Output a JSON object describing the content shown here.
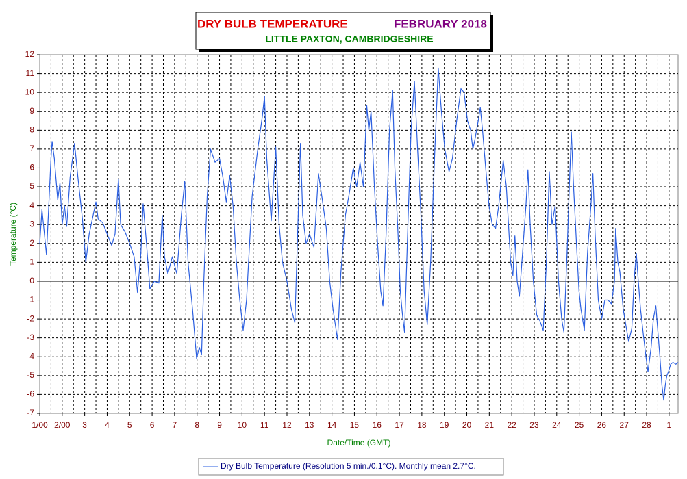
{
  "chart_data": {
    "type": "line",
    "title": "DRY BULB TEMPERATURE",
    "period": "FEBRUARY 2018",
    "subtitle": "LITTLE PAXTON, CAMBRIDGESHIRE",
    "x_label": "Date/Time (GMT)",
    "y_label": "Temperature (°C)",
    "xlim": [
      0,
      28.4
    ],
    "ylim": [
      -7,
      12
    ],
    "xticks": [
      {
        "value": 0,
        "label": "1/00"
      },
      {
        "value": 1,
        "label": "2/00"
      },
      {
        "value": 2,
        "label": "3"
      },
      {
        "value": 3,
        "label": "4"
      },
      {
        "value": 4,
        "label": "5"
      },
      {
        "value": 5,
        "label": "6"
      },
      {
        "value": 6,
        "label": "7"
      },
      {
        "value": 7,
        "label": "8"
      },
      {
        "value": 8,
        "label": "9"
      },
      {
        "value": 9,
        "label": "10"
      },
      {
        "value": 10,
        "label": "11"
      },
      {
        "value": 11,
        "label": "12"
      },
      {
        "value": 12,
        "label": "13"
      },
      {
        "value": 13,
        "label": "14"
      },
      {
        "value": 14,
        "label": "15"
      },
      {
        "value": 15,
        "label": "16"
      },
      {
        "value": 16,
        "label": "17"
      },
      {
        "value": 17,
        "label": "18"
      },
      {
        "value": 18,
        "label": "19"
      },
      {
        "value": 19,
        "label": "20"
      },
      {
        "value": 20,
        "label": "21"
      },
      {
        "value": 21,
        "label": "22"
      },
      {
        "value": 22,
        "label": "23"
      },
      {
        "value": 23,
        "label": "24"
      },
      {
        "value": 24,
        "label": "25"
      },
      {
        "value": 25,
        "label": "26"
      },
      {
        "value": 26,
        "label": "27"
      },
      {
        "value": 27,
        "label": "28"
      },
      {
        "value": 28,
        "label": "1"
      }
    ],
    "yticks": [
      -7,
      -6,
      -5,
      -4,
      -3,
      -2,
      -1,
      0,
      1,
      2,
      3,
      4,
      5,
      6,
      7,
      8,
      9,
      10,
      11,
      12
    ],
    "grid": true,
    "series": [
      {
        "name": "Dry Bulb Temperature (Resolution 5 min./0.1°C). Monthly mean 2.7°C.",
        "color": "#2b5fe0",
        "x": [
          0,
          0.1,
          0.3,
          0.5,
          0.55,
          0.65,
          0.8,
          0.9,
          1.0,
          1.1,
          1.2,
          1.35,
          1.55,
          1.7,
          1.9,
          2.05,
          2.2,
          2.5,
          2.6,
          2.8,
          3.0,
          3.2,
          3.35,
          3.5,
          3.6,
          3.8,
          4.0,
          4.2,
          4.35,
          4.5,
          4.6,
          4.75,
          4.9,
          5.1,
          5.3,
          5.45,
          5.55,
          5.7,
          5.9,
          6.1,
          6.3,
          6.45,
          6.6,
          6.8,
          6.98,
          7.1,
          7.2,
          7.3,
          7.45,
          7.6,
          7.8,
          8.0,
          8.15,
          8.3,
          8.45,
          8.6,
          8.75,
          8.9,
          9.05,
          9.2,
          9.45,
          9.7,
          9.9,
          10.0,
          10.1,
          10.3,
          10.5,
          10.65,
          10.8,
          11.0,
          11.2,
          11.35,
          11.5,
          11.6,
          11.7,
          11.85,
          12.0,
          12.2,
          12.4,
          12.55,
          12.75,
          12.9,
          13.05,
          13.25,
          13.4,
          13.6,
          13.75,
          13.95,
          14.1,
          14.25,
          14.4,
          14.55,
          14.64,
          14.74,
          14.89,
          15.03,
          15.17,
          15.27,
          15.41,
          15.56,
          15.7,
          15.8,
          15.94,
          16.04,
          16.14,
          16.23,
          16.38,
          16.52,
          16.67,
          16.81,
          16.96,
          17.1,
          17.24,
          17.39,
          17.58,
          17.73,
          17.87,
          18.02,
          18.21,
          18.36,
          18.55,
          18.74,
          18.88,
          19.03,
          19.17,
          19.27,
          19.36,
          19.51,
          19.6,
          19.7,
          19.84,
          19.99,
          20.13,
          20.28,
          20.42,
          20.62,
          20.76,
          20.95,
          21.05,
          21.14,
          21.24,
          21.34,
          21.48,
          21.63,
          21.72,
          21.82,
          21.96,
          22.11,
          22.25,
          22.4,
          22.54,
          22.67,
          22.79,
          22.93,
          23.08,
          23.22,
          23.32,
          23.46,
          23.56,
          23.65,
          23.75,
          23.9,
          23.99,
          24.08,
          24.23,
          24.37,
          24.52,
          24.61,
          24.71,
          24.85,
          25.0,
          25.14,
          25.29,
          25.43,
          25.57,
          25.62,
          25.72,
          25.81,
          25.96,
          26.1,
          26.2,
          26.34,
          26.44,
          26.54,
          26.63,
          26.73,
          26.87,
          26.97,
          27.06,
          27.2,
          27.3,
          27.41,
          27.49,
          27.59,
          27.68,
          27.76,
          27.83,
          27.9,
          27.97,
          28.07,
          28.17,
          28.3,
          28.4
        ],
        "values": [
          2.0,
          3.8,
          1.4,
          6.5,
          7.4,
          6.5,
          4.3,
          5.2,
          3.0,
          4.0,
          2.9,
          5.5,
          7.3,
          5.5,
          3.3,
          1.0,
          2.5,
          4.2,
          3.3,
          3.1,
          2.5,
          1.9,
          2.5,
          5.4,
          3.0,
          2.6,
          2.0,
          1.3,
          -0.6,
          1.5,
          4.1,
          2.0,
          -0.4,
          0.0,
          -0.1,
          3.5,
          1.3,
          0.4,
          1.3,
          0.4,
          3.5,
          5.3,
          1.0,
          -1.5,
          -4.1,
          -3.5,
          -3.9,
          0.0,
          4.5,
          7.0,
          6.3,
          6.5,
          5.5,
          4.2,
          5.6,
          4.0,
          1.0,
          -1.0,
          -2.6,
          -1.0,
          4.5,
          7.0,
          8.7,
          9.8,
          6.5,
          3.2,
          7.1,
          3.0,
          1.0,
          0.0,
          -1.5,
          -2.2,
          3.5,
          7.3,
          3.5,
          2.0,
          2.5,
          1.8,
          5.7,
          4.5,
          2.8,
          0.0,
          -1.5,
          -3.1,
          0.5,
          3.5,
          4.5,
          6.0,
          5.0,
          6.3,
          5.0,
          9.3,
          8.0,
          9.0,
          5.0,
          2.0,
          -0.5,
          -1.3,
          2.5,
          8.0,
          10.1,
          6.0,
          2.5,
          -0.5,
          -1.8,
          -2.7,
          3.0,
          8.0,
          10.6,
          7.0,
          3.5,
          -0.5,
          -2.3,
          1.0,
          7.0,
          11.3,
          9.0,
          7.0,
          5.8,
          6.5,
          8.5,
          10.2,
          10.0,
          8.5,
          8.0,
          7.0,
          7.5,
          8.5,
          9.2,
          8.0,
          6.0,
          4.0,
          3.0,
          2.8,
          4.0,
          6.4,
          5.0,
          1.0,
          0.3,
          2.4,
          0.0,
          -0.8,
          1.5,
          4.0,
          5.9,
          3.0,
          0.0,
          -1.8,
          -2.1,
          -2.6,
          1.0,
          5.8,
          3.0,
          4.0,
          0.0,
          -2.0,
          -2.7,
          1.5,
          5.0,
          7.9,
          5.0,
          1.5,
          -0.5,
          -1.5,
          -2.6,
          1.5,
          4.0,
          5.7,
          2.5,
          -1.0,
          -2.0,
          -1.0,
          -1.0,
          -1.2,
          0.0,
          2.8,
          1.0,
          0.5,
          -1.5,
          -2.5,
          -3.2,
          -2.5,
          0.0,
          1.5,
          0.0,
          -1.5,
          -3.0,
          -4.0,
          -4.8,
          -3.5,
          -2.0,
          -1.3,
          -2.5,
          -4.0,
          -5.5,
          -6.3,
          -5.5,
          -5.0,
          -4.8,
          -4.4,
          -4.3,
          -4.4,
          -4.3
        ]
      }
    ]
  }
}
